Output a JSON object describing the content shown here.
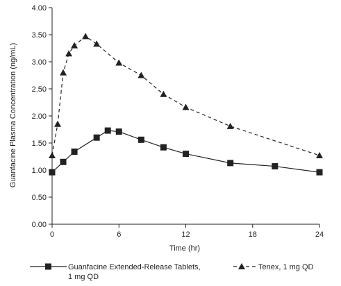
{
  "chart_data": {
    "type": "line",
    "title": "",
    "xlabel": "Time (hr)",
    "ylabel": "Guanfacine Plasma Concentration (ng/mL)",
    "xlim": [
      0,
      24
    ],
    "ylim": [
      0,
      4
    ],
    "x_ticks": [
      0,
      6,
      12,
      18,
      24
    ],
    "x_tick_labels": [
      "0",
      "6",
      "12",
      "18",
      "24"
    ],
    "y_ticks": [
      0,
      0.5,
      1.0,
      1.5,
      2.0,
      2.5,
      3.0,
      3.5,
      4.0
    ],
    "y_tick_labels": [
      "0.00",
      "0.50",
      "1.00",
      "1.50",
      "2.00",
      "2.50",
      "3.00",
      "3.50",
      "4.00"
    ],
    "grid": false,
    "legend_position": "bottom",
    "series": [
      {
        "name": "Guanfacine Extended-Release Tablets, 1 mg QD",
        "legend_lines": [
          "Guanfacine Extended-Release Tablets,",
          "1 mg QD"
        ],
        "marker": "square",
        "line_style": "solid",
        "color": "#222222",
        "x": [
          0,
          1,
          2,
          4,
          5,
          6,
          8,
          10,
          12,
          16,
          20,
          24
        ],
        "y": [
          0.96,
          1.15,
          1.34,
          1.6,
          1.73,
          1.71,
          1.56,
          1.42,
          1.3,
          1.13,
          1.07,
          0.96
        ]
      },
      {
        "name": "Tenex, 1 mg QD",
        "legend_lines": [
          "Tenex, 1 mg QD"
        ],
        "marker": "triangle",
        "line_style": "dashed",
        "color": "#222222",
        "x": [
          0,
          0.5,
          1,
          1.5,
          2,
          3,
          4,
          6,
          8,
          10,
          12,
          16,
          24
        ],
        "y": [
          1.27,
          1.85,
          2.8,
          3.15,
          3.3,
          3.47,
          3.33,
          2.98,
          2.75,
          2.4,
          2.16,
          1.81,
          1.27
        ]
      }
    ]
  }
}
